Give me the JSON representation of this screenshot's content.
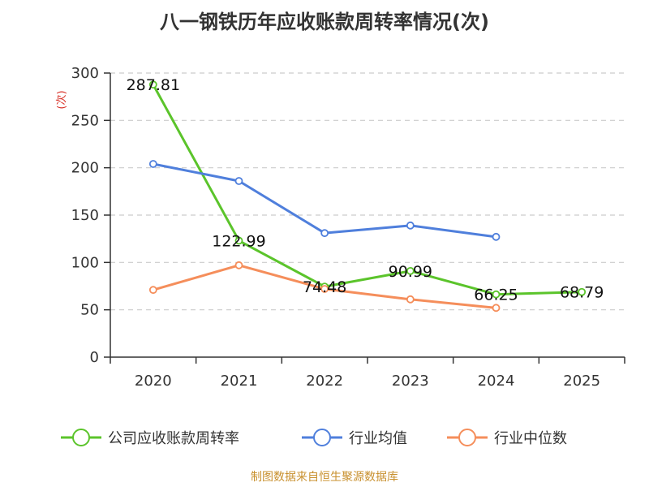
{
  "chart_data": {
    "type": "line",
    "title": "八一钢铁历年应收账款周转率情况(次)",
    "ylabel": "(次)",
    "xlabel": "",
    "categories": [
      "2020",
      "2021",
      "2022",
      "2023",
      "2024",
      "2025"
    ],
    "ylim": [
      0,
      300
    ],
    "yticks": [
      0,
      50,
      100,
      150,
      200,
      250,
      300
    ],
    "grid": true,
    "legend_position": "bottom",
    "series": [
      {
        "name": "公司应收账款周转率",
        "color": "#5bc42b",
        "values": [
          287.81,
          122.99,
          74.48,
          90.99,
          66.25,
          68.79
        ],
        "labels": [
          "287.81",
          "122.99",
          "74.48",
          "90.99",
          "66.25",
          "68.79"
        ]
      },
      {
        "name": "行业均值",
        "color": "#4f7fdc",
        "values": [
          204,
          186,
          131,
          139,
          127,
          null
        ]
      },
      {
        "name": "行业中位数",
        "color": "#f58e5b",
        "values": [
          71,
          97,
          72,
          61,
          52,
          null
        ]
      }
    ],
    "footer": "制图数据来自恒生聚源数据库",
    "footer_color": "#c8902e",
    "ylabel_color": "#d9342b"
  }
}
